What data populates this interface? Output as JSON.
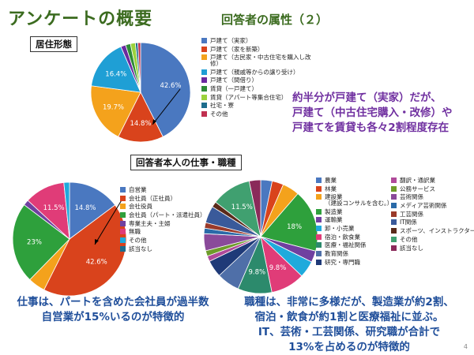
{
  "slide": {
    "title": "アンケートの概要",
    "subtitle": "回答者の属性（２）",
    "page_number": "4"
  },
  "sections": {
    "residence_label": "居住形態",
    "occupation_label": "回答者本人の仕事・職種"
  },
  "notes": {
    "residence": [
      "約半分が戸建て（実家）だが、",
      "戸建て（中古住宅購入・改修）や",
      "戸建てを賃貸も各々2割程度存在"
    ],
    "job": [
      "仕事は、パートを含めた会社員が過半数",
      "自営業が15%いるのが特徴的"
    ],
    "occupation": [
      "職種は、非常に多様だが、製造業が約2割、",
      "宿泊・飲食が約1割と医療福祉に並ぶ。",
      "IT、芸術・工芸関係、研究職が合計で",
      "13%を占めるのが特徴的"
    ]
  },
  "chart_data": [
    {
      "type": "pie",
      "name": "residence",
      "categories": [
        "戸建て（実家）",
        "戸建て（家を新築）",
        "戸建て（古民家・中古住宅を購入し改修）",
        "戸建て（親戚等からの譲り受け）",
        "戸建て（間借り）",
        "賃貸（一戸建て）",
        "賃貸（アパート等集合住宅）",
        "社宅・寮",
        "その他"
      ],
      "values": [
        42.6,
        14.8,
        19.7,
        16.4,
        1.6,
        1.6,
        1.6,
        0.8,
        0.9
      ],
      "colors": [
        "#4a78c0",
        "#d9431c",
        "#f4a21c",
        "#1f9fd5",
        "#6b2aa0",
        "#2e8b36",
        "#9bd23c",
        "#1d6d8c",
        "#c03050"
      ],
      "data_labels": [
        "42.6%",
        "14.8%",
        "19.7%",
        "16.4%",
        "",
        "",
        "",
        "",
        ""
      ],
      "legend_labels": [
        [
          "戸建て（実家）"
        ],
        [
          "戸建て（家を新築）"
        ],
        [
          "戸建て（古民家・中古住宅を購入し改",
          "修）"
        ],
        [
          "戸建て（親戚等からの譲り受け）"
        ],
        [
          "戸建て（間借り）"
        ],
        [
          "賃貸（一戸建て）"
        ],
        [
          "賃貸（アパート等集合住宅）"
        ],
        [
          "社宅・寮"
        ],
        [
          "その他"
        ]
      ],
      "legend_position": "right"
    },
    {
      "type": "pie",
      "name": "job",
      "categories": [
        "自営業",
        "会社員（正社員）",
        "会社役員",
        "会社員（パート・派遣社員）",
        "専業主夫・主婦",
        "無職",
        "その他",
        "該当なし"
      ],
      "values": [
        14.8,
        42.6,
        4.9,
        23,
        1.6,
        11.5,
        1.6,
        0
      ],
      "colors": [
        "#4a78c0",
        "#d9431c",
        "#f4a21c",
        "#2ea03c",
        "#7040a0",
        "#e03c78",
        "#1faadc",
        "#1d6d8c"
      ],
      "data_labels": [
        "14.8%",
        "42.6%",
        "",
        "23%",
        "",
        "11.5%",
        "",
        ""
      ],
      "legend_position": "right"
    },
    {
      "type": "pie",
      "name": "occupation",
      "categories": [
        "農業",
        "林業",
        "建設業（建設コンサルを含む。）",
        "製造業",
        "運輸業",
        "卸・小売業",
        "宿泊・飲食業",
        "医療・福祉関係",
        "教育関係",
        "研究・専門職",
        "翻訳・通訳業",
        "公務サービス",
        "芸術関係",
        "メディア芸術関係",
        "工芸関係",
        "IT関係",
        "スポーツ、インストラクター",
        "その他",
        "該当なし"
      ],
      "values": [
        3.3,
        3.3,
        4.9,
        18,
        3.3,
        4.9,
        9.8,
        9.8,
        6.6,
        4.9,
        1.6,
        1.6,
        4.9,
        1.6,
        1.6,
        4.9,
        1.6,
        11.5,
        3.3
      ],
      "colors": [
        "#4a78c0",
        "#d9431c",
        "#f4a21c",
        "#2ea03c",
        "#7040a0",
        "#1faadc",
        "#e03c78",
        "#2c8a6c",
        "#4f6fa8",
        "#1f3a78",
        "#b04a9a",
        "#6e9c2a",
        "#8a4a9a",
        "#2a6aa8",
        "#9a3a2a",
        "#3a5a9a",
        "#5a2a1a",
        "#40a070",
        "#8a2a5a"
      ],
      "data_labels": [
        "",
        "",
        "",
        "18%",
        "",
        "",
        "9.8%",
        "9.8%",
        "",
        "",
        "",
        "",
        "",
        "",
        "",
        "",
        "",
        "11.5%",
        ""
      ],
      "legend_position": "right"
    }
  ]
}
